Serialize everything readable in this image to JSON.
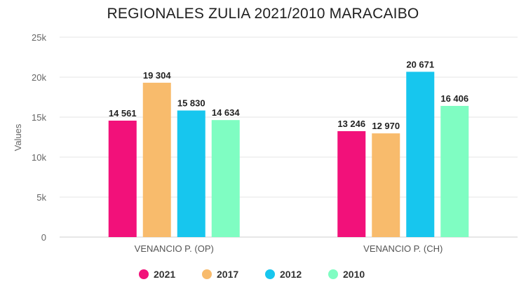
{
  "chart_data": {
    "type": "bar",
    "title": "REGIONALES ZULIA 2021/2010 MARACAIBO",
    "ylabel": "Values",
    "xlabel": "",
    "ylim": [
      0,
      25000
    ],
    "yticks": [
      0,
      5000,
      10000,
      15000,
      20000,
      25000
    ],
    "ytick_labels": [
      "0",
      "5k",
      "10k",
      "15k",
      "20k",
      "25k"
    ],
    "categories": [
      "VENANCIO P. (OP)",
      "VENANCIO P. (CH)"
    ],
    "grid": true,
    "legend_position": "bottom",
    "series": [
      {
        "name": "2021",
        "color": "#f2117a",
        "values": [
          14561,
          13246
        ],
        "labels": [
          "14 561",
          "13 246"
        ]
      },
      {
        "name": "2017",
        "color": "#f8bb6c",
        "values": [
          19304,
          12970
        ],
        "labels": [
          "19 304",
          "12 970"
        ]
      },
      {
        "name": "2012",
        "color": "#17c6ee",
        "values": [
          15830,
          20671
        ],
        "labels": [
          "15 830",
          "20 671"
        ]
      },
      {
        "name": "2010",
        "color": "#7ffdc2",
        "values": [
          14634,
          16406
        ],
        "labels": [
          "14 634",
          "16 406"
        ]
      }
    ]
  }
}
